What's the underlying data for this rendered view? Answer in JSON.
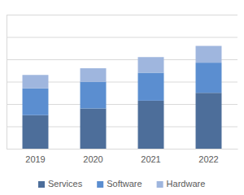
{
  "chart_data": {
    "type": "bar",
    "stacked": true,
    "grid": true,
    "legend": "bottom",
    "tick_labels": "x",
    "categories": [
      "2019",
      "2020",
      "2021",
      "2022"
    ],
    "series": [
      {
        "name": "Services",
        "color": "#4d6e9a",
        "values": [
          15,
          18,
          21.5,
          25
        ]
      },
      {
        "name": "Software",
        "color": "#5b8ed0",
        "values": [
          12,
          12,
          12.5,
          13.5
        ]
      },
      {
        "name": "Hardware",
        "color": "#9fb6de",
        "values": [
          6,
          6,
          7,
          7.5
        ]
      }
    ],
    "ylim": [
      0,
      60
    ],
    "yticks": [
      0,
      10,
      20,
      30,
      40,
      50,
      60
    ]
  }
}
